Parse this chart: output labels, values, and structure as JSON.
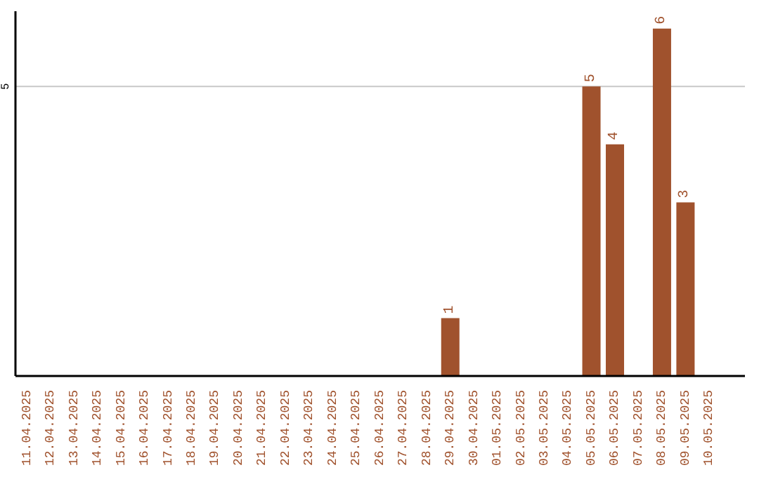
{
  "chart_data": {
    "type": "bar",
    "categories": [
      "11.04.2025",
      "12.04.2025",
      "13.04.2025",
      "14.04.2025",
      "15.04.2025",
      "16.04.2025",
      "17.04.2025",
      "18.04.2025",
      "19.04.2025",
      "20.04.2025",
      "21.04.2025",
      "22.04.2025",
      "23.04.2025",
      "24.04.2025",
      "25.04.2025",
      "26.04.2025",
      "27.04.2025",
      "28.04.2025",
      "29.04.2025",
      "30.04.2025",
      "01.05.2025",
      "02.05.2025",
      "03.05.2025",
      "04.05.2025",
      "05.05.2025",
      "06.05.2025",
      "07.05.2025",
      "08.05.2025",
      "09.05.2025",
      "10.05.2025"
    ],
    "values": [
      null,
      null,
      null,
      null,
      null,
      null,
      null,
      null,
      null,
      null,
      null,
      null,
      null,
      null,
      null,
      null,
      null,
      null,
      1,
      null,
      null,
      null,
      null,
      null,
      5,
      4,
      null,
      6,
      3,
      null
    ],
    "color": "#a0522d",
    "ylim": [
      0,
      6.3
    ],
    "yticks": [
      5
    ],
    "grid": "y",
    "data_labels": true
  }
}
